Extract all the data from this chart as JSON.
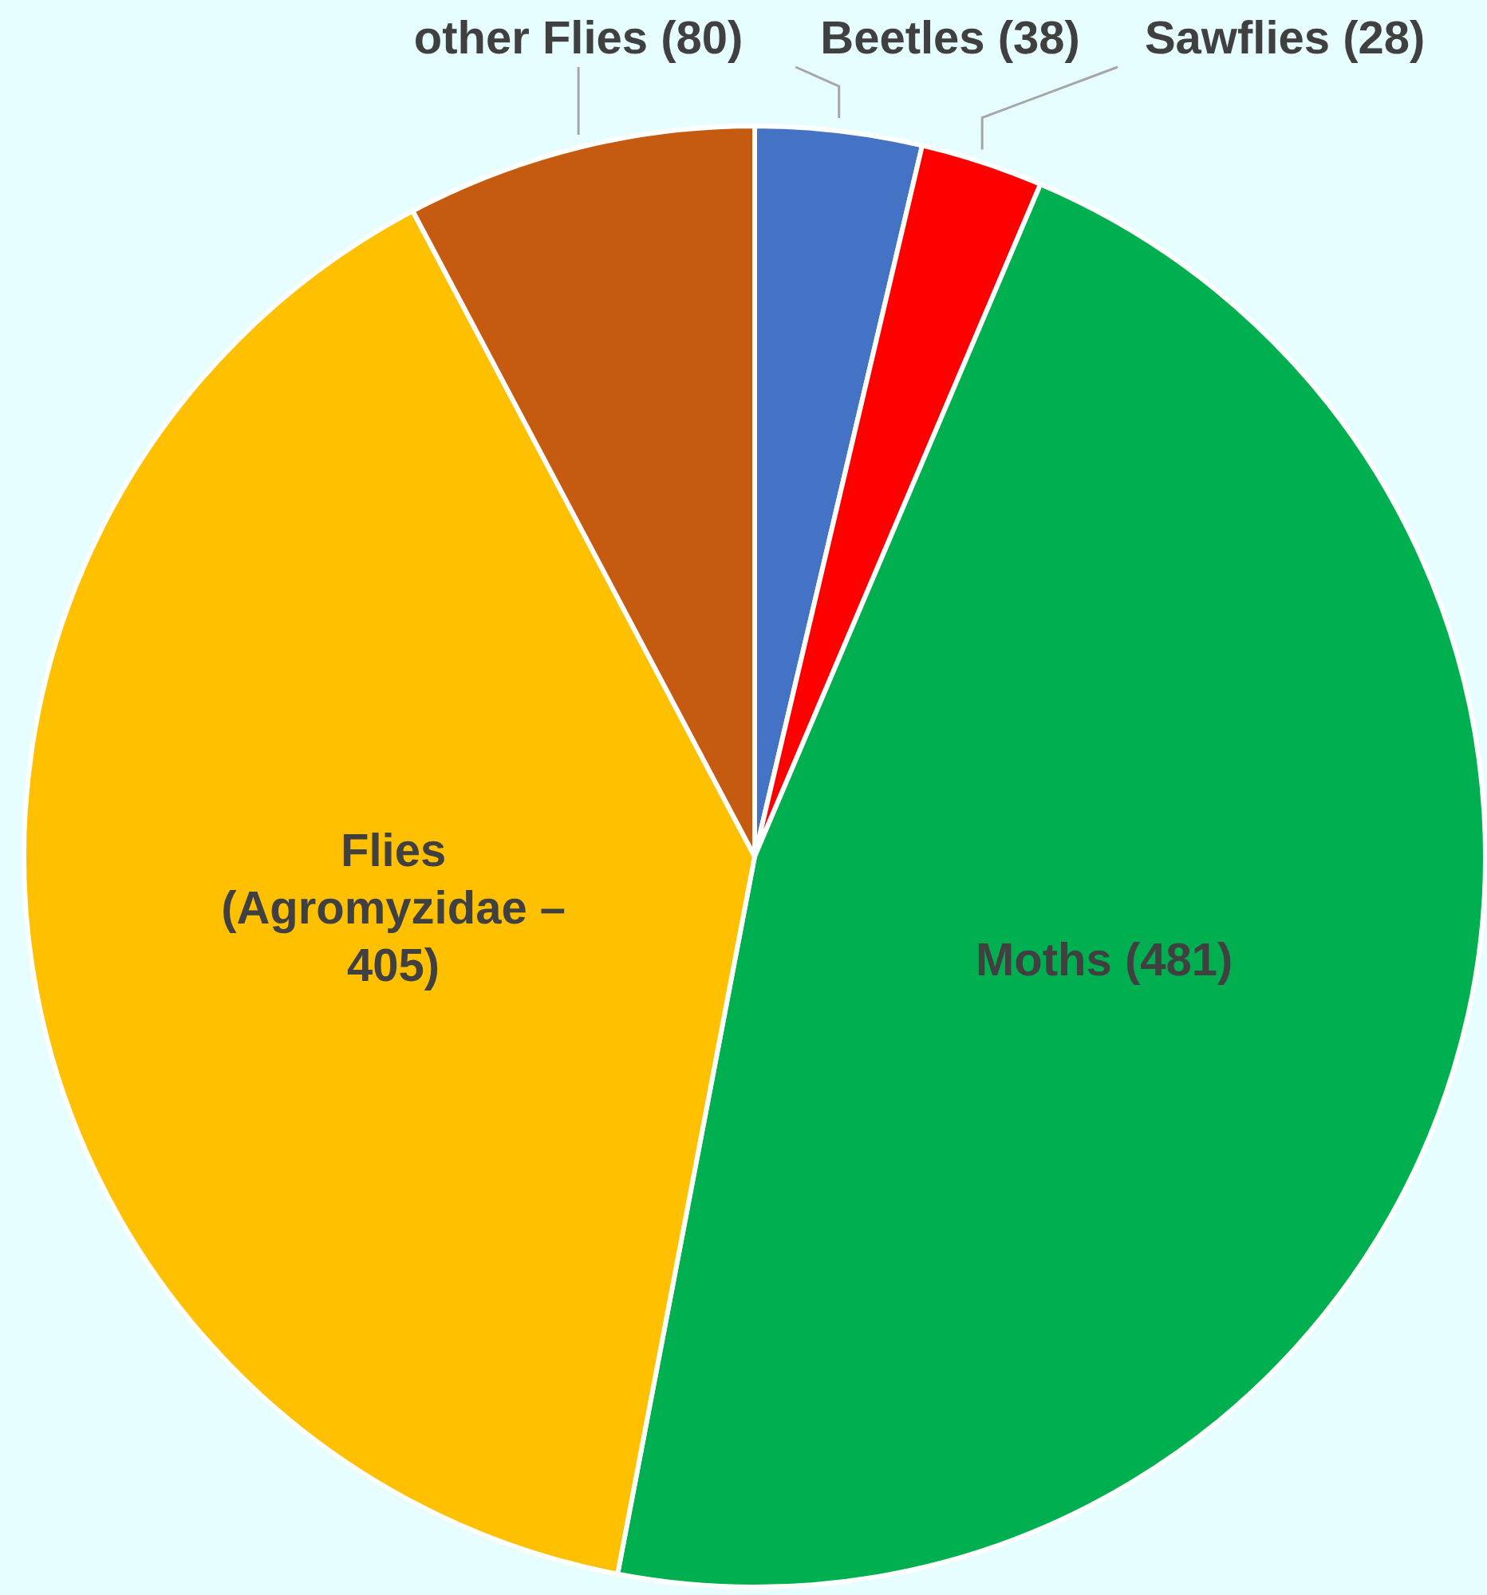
{
  "chart_data": {
    "type": "pie",
    "categories": [
      "Beetles (38)",
      "Sawflies (28)",
      "Moths (481)",
      "Flies (Agromyzidae – 405)",
      "other Flies (80)"
    ],
    "values": [
      38,
      28,
      481,
      405,
      80
    ],
    "colors": [
      "#4472c4",
      "#ff0000",
      "#00b050",
      "#ffc000",
      "#c55a11"
    ]
  }
}
